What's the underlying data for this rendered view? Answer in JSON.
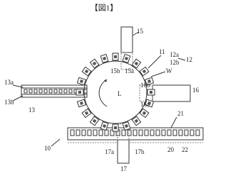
{
  "header": {
    "title": "【図1】"
  },
  "labels": [
    "15",
    "11",
    "12a",
    "12b",
    "12",
    "W",
    "16",
    "16b",
    "16a",
    "15b",
    "15a",
    "13a",
    "13b",
    "13",
    "L",
    "21",
    "20",
    "22",
    "10",
    "17a",
    "17b",
    "17"
  ]
}
